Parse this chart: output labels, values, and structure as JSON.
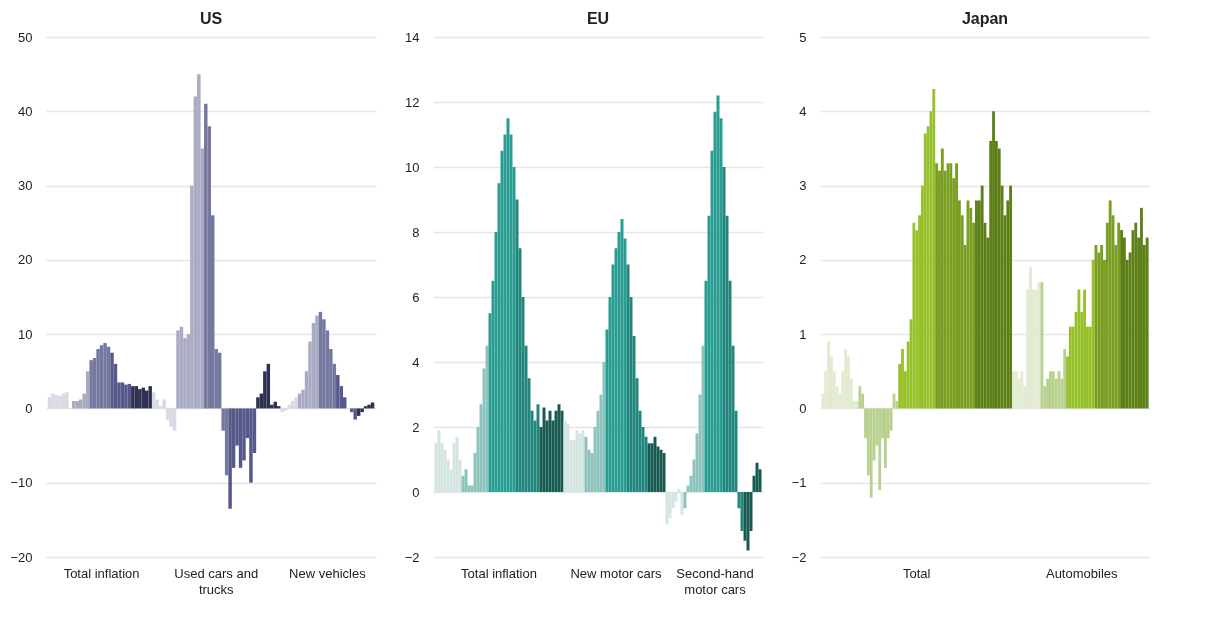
{
  "chart_data": [
    {
      "type": "bar",
      "title": "US",
      "ylim": [
        -20,
        50
      ],
      "yticks": [
        -20,
        -10,
        0,
        10,
        20,
        30,
        40,
        50
      ],
      "grid": "y",
      "categories": [
        null,
        null,
        null,
        null,
        null,
        null,
        null,
        null,
        null,
        null,
        null,
        null,
        null,
        null,
        null,
        "Total inflation",
        null,
        null,
        null,
        null,
        null,
        null,
        null,
        null,
        null,
        null,
        null,
        null,
        null,
        null,
        null,
        null,
        null,
        null,
        null,
        null,
        null,
        null,
        null,
        null,
        null,
        null,
        null,
        null,
        null,
        null,
        null,
        null,
        "Used cars and trucks",
        null,
        null,
        null,
        null,
        null,
        null,
        null,
        null,
        null,
        null,
        null,
        null,
        null,
        null,
        null,
        null,
        null,
        null,
        null,
        null,
        null,
        null,
        null,
        null,
        null,
        null,
        null,
        null,
        null,
        null,
        null,
        "New vehicles",
        null,
        null,
        null,
        null,
        null,
        null,
        null,
        null,
        null,
        null,
        null,
        null,
        null
      ],
      "values": [
        1.5,
        2,
        1.8,
        1.7,
        2,
        2.2,
        null,
        1,
        1,
        1.2,
        2,
        5,
        6.5,
        6.8,
        8,
        8.5,
        8.8,
        8.3,
        7.5,
        6,
        3.5,
        3.5,
        3.2,
        3.3,
        3,
        3,
        2.6,
        2.8,
        2.4,
        3,
        2.2,
        1.2,
        0.3,
        1.2,
        -1.5,
        -2.5,
        -3,
        10.5,
        11,
        9.5,
        10,
        30,
        42,
        45,
        35,
        41,
        38,
        26,
        8,
        7.5,
        -3,
        -9,
        -13.5,
        -8,
        -5,
        -8,
        -7,
        -4,
        -10,
        -6,
        1.5,
        2,
        5,
        6,
        0.5,
        0.9,
        0.3,
        -0.5,
        -0.3,
        0.5,
        1,
        1.5,
        2,
        2.5,
        5,
        9,
        11.5,
        12.5,
        13,
        12,
        10.5,
        8,
        6,
        4.5,
        3,
        1.5,
        0,
        -0.5,
        -1.5,
        -1,
        -0.5,
        0.3,
        0.5,
        0.8
      ],
      "colors": [
        "#d9dae3",
        "#d9dae3",
        "#d9dae3",
        "#d9dae3",
        "#d9dae3",
        "#d9dae3",
        "#a9abc3",
        "#a9abc3",
        "#a9abc3",
        "#a9abc3",
        "#a9abc3",
        "#a9abc3",
        "#7579a0",
        "#7579a0",
        "#7579a0",
        "#7579a0",
        "#7579a0",
        "#7579a0",
        "#565a8a",
        "#565a8a",
        "#565a8a",
        "#565a8a",
        "#565a8a",
        "#565a8a",
        "#2f3150",
        "#2f3150",
        "#2f3150",
        "#2f3150",
        "#2f3150",
        "#2f3150",
        "#d9dae3",
        "#d9dae3",
        "#d9dae3",
        "#d9dae3",
        "#d9dae3",
        "#d9dae3",
        "#d9dae3",
        "#a9abc3",
        "#a9abc3",
        "#a9abc3",
        "#a9abc3",
        "#a9abc3",
        "#a9abc3",
        "#a9abc3",
        "#a9abc3",
        "#7579a0",
        "#7579a0",
        "#7579a0",
        "#7579a0",
        "#7579a0",
        "#7579a0",
        "#7579a0",
        "#565a8a",
        "#565a8a",
        "#565a8a",
        "#565a8a",
        "#565a8a",
        "#565a8a",
        "#565a8a",
        "#565a8a",
        "#2f3150",
        "#2f3150",
        "#2f3150",
        "#2f3150",
        "#2f3150",
        "#2f3150",
        "#2f3150",
        "#d9dae3",
        "#d9dae3",
        "#d9dae3",
        "#d9dae3",
        "#d9dae3",
        "#a9abc3",
        "#a9abc3",
        "#a9abc3",
        "#a9abc3",
        "#a9abc3",
        "#a9abc3",
        "#7579a0",
        "#7579a0",
        "#7579a0",
        "#7579a0",
        "#7579a0",
        "#565a8a",
        "#565a8a",
        "#565a8a",
        "#565a8a",
        "#565a8a",
        "#565a8a",
        "#2f3150",
        "#2f3150",
        "#2f3150",
        "#2f3150",
        "#2f3150"
      ]
    },
    {
      "type": "bar",
      "title": "EU",
      "ylim": [
        -2,
        14
      ],
      "yticks": [
        -2,
        0,
        2,
        4,
        6,
        8,
        10,
        12,
        14
      ],
      "grid": "y",
      "categories": [
        null,
        null,
        null,
        null,
        null,
        null,
        null,
        null,
        null,
        null,
        null,
        null,
        null,
        null,
        null,
        null,
        null,
        null,
        null,
        null,
        null,
        "Total inflation",
        null,
        null,
        null,
        null,
        null,
        null,
        null,
        null,
        null,
        null,
        null,
        null,
        null,
        null,
        null,
        null,
        null,
        null,
        null,
        null,
        null,
        null,
        null,
        null,
        null,
        null,
        null,
        null,
        null,
        null,
        null,
        null,
        null,
        null,
        null,
        null,
        null,
        null,
        "New motor cars",
        null,
        null,
        null,
        null,
        null,
        null,
        null,
        null,
        null,
        null,
        null,
        null,
        null,
        null,
        null,
        null,
        null,
        null,
        null,
        null,
        null,
        null,
        null,
        null,
        null,
        null,
        null,
        null,
        null,
        null,
        null,
        null,
        "Second-hand motor cars",
        null,
        null,
        null,
        null,
        null,
        null,
        null,
        null,
        null,
        null,
        null,
        null,
        null,
        null,
        null
      ],
      "values": [
        1.5,
        1.9,
        1.5,
        1.3,
        1,
        0.7,
        1.5,
        1.7,
        1,
        0.5,
        0.7,
        0.2,
        0.2,
        1.2,
        2,
        2.7,
        3.8,
        4.5,
        5.5,
        6.5,
        8,
        9.5,
        10.5,
        11,
        11.5,
        11,
        10,
        9,
        7.5,
        6,
        4.5,
        3.5,
        2.5,
        2.2,
        2.7,
        2,
        2.6,
        2.2,
        2.5,
        2.2,
        2.5,
        2.7,
        2.5,
        2.2,
        2.1,
        1.6,
        1.6,
        1.9,
        1.8,
        1.9,
        1.7,
        1.3,
        1.2,
        2,
        2.5,
        3,
        4,
        5,
        6,
        7,
        7.5,
        8,
        8.4,
        7.8,
        7,
        6,
        4.8,
        3.5,
        2.5,
        2,
        1.7,
        1.5,
        1.5,
        1.7,
        1.4,
        1.3,
        1.2,
        -1,
        -0.8,
        -0.5,
        -0.3,
        0.1,
        -0.7,
        -0.5,
        0.2,
        0.5,
        1,
        1.8,
        3,
        4.5,
        6.5,
        8.5,
        10.5,
        11.7,
        12.2,
        11.5,
        10,
        8.5,
        6.5,
        4.5,
        2.5,
        -0.5,
        -1.2,
        -1.5,
        -1.8,
        -1.2,
        0.5,
        0.9,
        0.7
      ],
      "colors": [
        "#d3e4e1",
        "#d3e4e1",
        "#d3e4e1",
        "#d3e4e1",
        "#d3e4e1",
        "#d3e4e1",
        "#d3e4e1",
        "#d3e4e1",
        "#d3e4e1",
        "#8cc3bc",
        "#8cc3bc",
        "#8cc3bc",
        "#8cc3bc",
        "#8cc3bc",
        "#8cc3bc",
        "#8cc3bc",
        "#8cc3bc",
        "#8cc3bc",
        "#2a9d92",
        "#2a9d92",
        "#2a9d92",
        "#2a9d92",
        "#2a9d92",
        "#2a9d92",
        "#2a9d92",
        "#2a9d92",
        "#2a9d92",
        "#23867d",
        "#23867d",
        "#23867d",
        "#23867d",
        "#23867d",
        "#23867d",
        "#23867d",
        "#23867d",
        "#185a52",
        "#185a52",
        "#185a52",
        "#185a52",
        "#185a52",
        "#185a52",
        "#185a52",
        "#185a52",
        "#d3e4e1",
        "#d3e4e1",
        "#d3e4e1",
        "#d3e4e1",
        "#d3e4e1",
        "#d3e4e1",
        "#d3e4e1",
        "#8cc3bc",
        "#8cc3bc",
        "#8cc3bc",
        "#8cc3bc",
        "#8cc3bc",
        "#8cc3bc",
        "#8cc3bc",
        "#2a9d92",
        "#2a9d92",
        "#2a9d92",
        "#2a9d92",
        "#2a9d92",
        "#2a9d92",
        "#2a9d92",
        "#23867d",
        "#23867d",
        "#23867d",
        "#23867d",
        "#23867d",
        "#23867d",
        "#23867d",
        "#185a52",
        "#185a52",
        "#185a52",
        "#185a52",
        "#185a52",
        "#185a52",
        "#d3e4e1",
        "#d3e4e1",
        "#d3e4e1",
        "#d3e4e1",
        "#d3e4e1",
        "#d3e4e1",
        "#8cc3bc",
        "#8cc3bc",
        "#8cc3bc",
        "#8cc3bc",
        "#8cc3bc",
        "#8cc3bc",
        "#8cc3bc",
        "#2a9d92",
        "#2a9d92",
        "#2a9d92",
        "#2a9d92",
        "#2a9d92",
        "#2a9d92",
        "#23867d",
        "#23867d",
        "#23867d",
        "#23867d",
        "#23867d",
        "#23867d",
        "#23867d",
        "#185a52",
        "#185a52",
        "#185a52",
        "#185a52",
        "#185a52",
        "#185a52"
      ]
    },
    {
      "type": "bar",
      "title": "Japan",
      "ylim": [
        -2,
        5
      ],
      "yticks": [
        -2,
        -1,
        0,
        1,
        2,
        3,
        4,
        5
      ],
      "grid": "y",
      "categories": [
        null,
        null,
        null,
        null,
        null,
        null,
        null,
        null,
        null,
        null,
        null,
        null,
        null,
        null,
        null,
        null,
        null,
        null,
        null,
        null,
        null,
        null,
        null,
        null,
        null,
        null,
        null,
        null,
        null,
        null,
        null,
        null,
        null,
        "Total",
        null,
        null,
        null,
        null,
        null,
        null,
        null,
        null,
        null,
        null,
        null,
        null,
        null,
        null,
        null,
        null,
        null,
        null,
        null,
        null,
        null,
        null,
        null,
        null,
        null,
        null,
        null,
        null,
        null,
        null,
        null,
        null,
        null,
        null,
        null,
        null,
        null,
        null,
        null,
        null,
        null,
        null,
        null,
        null,
        null,
        null,
        null,
        null,
        null,
        null,
        null,
        null,
        null,
        null,
        null,
        null,
        null,
        "Automobiles",
        null,
        null,
        null,
        null,
        null,
        null,
        null,
        null,
        null,
        null,
        null,
        null,
        null,
        null,
        null,
        null,
        null,
        null,
        null,
        null,
        null,
        null,
        null
      ],
      "values": [
        0.2,
        0.5,
        0.9,
        0.7,
        0.5,
        0.3,
        0.2,
        0.5,
        0.8,
        0.7,
        0.4,
        0.1,
        0.1,
        0.3,
        0.2,
        -0.4,
        -0.9,
        -1.2,
        -0.7,
        -0.5,
        -1.1,
        -0.4,
        -0.8,
        -0.4,
        -0.3,
        0.2,
        0.1,
        0.6,
        0.8,
        0.5,
        0.9,
        1.2,
        2.5,
        2.4,
        2.6,
        3,
        3.7,
        3.8,
        4,
        4.3,
        3.3,
        3.2,
        3.5,
        3.2,
        3.3,
        3.3,
        3.1,
        3.3,
        2.8,
        2.6,
        2.2,
        2.8,
        2.7,
        2.5,
        2.8,
        2.8,
        3,
        2.5,
        2.3,
        3.6,
        4,
        3.6,
        3.5,
        3,
        2.6,
        2.8,
        3,
        0.5,
        0.5,
        0.4,
        0.5,
        0.3,
        1.6,
        1.9,
        1.6,
        1.6,
        1.7,
        1.7,
        0.3,
        0.4,
        0.5,
        0.5,
        0.4,
        0.5,
        0.4,
        0.8,
        0.7,
        1.1,
        1.1,
        1.3,
        1.6,
        1.3,
        1.6,
        1.1,
        1.1,
        2,
        2.2,
        2.1,
        2.2,
        2,
        2.5,
        2.8,
        2.6,
        2.2,
        2.5,
        2.4,
        2.3,
        2,
        2.1,
        2.4,
        2.5,
        2.3,
        2.7,
        2.2,
        2.3
      ],
      "colors": [
        "#e2ead2",
        "#e2ead2",
        "#e2ead2",
        "#e2ead2",
        "#e2ead2",
        "#e2ead2",
        "#e2ead2",
        "#e2ead2",
        "#e2ead2",
        "#e2ead2",
        "#e2ead2",
        "#e2ead2",
        "#e2ead2",
        "#b9d18f",
        "#b9d18f",
        "#b9d18f",
        "#b9d18f",
        "#b9d18f",
        "#b9d18f",
        "#b9d18f",
        "#b9d18f",
        "#b9d18f",
        "#b9d18f",
        "#b9d18f",
        "#b9d18f",
        "#b9d18f",
        "#b9d18f",
        "#96c12b",
        "#96c12b",
        "#96c12b",
        "#96c12b",
        "#96c12b",
        "#96c12b",
        "#96c12b",
        "#96c12b",
        "#96c12b",
        "#96c12b",
        "#96c12b",
        "#96c12b",
        "#96c12b",
        "#7a9e21",
        "#7a9e21",
        "#7a9e21",
        "#7a9e21",
        "#7a9e21",
        "#7a9e21",
        "#7a9e21",
        "#7a9e21",
        "#7a9e21",
        "#7a9e21",
        "#7a9e21",
        "#7a9e21",
        "#7a9e21",
        "#7a9e21",
        "#5d7f17",
        "#5d7f17",
        "#5d7f17",
        "#5d7f17",
        "#5d7f17",
        "#5d7f17",
        "#5d7f17",
        "#5d7f17",
        "#5d7f17",
        "#5d7f17",
        "#5d7f17",
        "#5d7f17",
        "#5d7f17",
        "#e2ead2",
        "#e2ead2",
        "#e2ead2",
        "#e2ead2",
        "#e2ead2",
        "#e2ead2",
        "#e2ead2",
        "#e2ead2",
        "#e2ead2",
        "#e2ead2",
        "#b9d18f",
        "#b9d18f",
        "#b9d18f",
        "#b9d18f",
        "#b9d18f",
        "#b9d18f",
        "#b9d18f",
        "#b9d18f",
        "#b9d18f",
        "#96c12b",
        "#96c12b",
        "#96c12b",
        "#96c12b",
        "#96c12b",
        "#96c12b",
        "#96c12b",
        "#96c12b",
        "#96c12b",
        "#96c12b",
        "#7a9e21",
        "#7a9e21",
        "#7a9e21",
        "#7a9e21",
        "#7a9e21",
        "#7a9e21",
        "#7a9e21",
        "#7a9e21",
        "#7a9e21",
        "#5d7f17",
        "#5d7f17",
        "#5d7f17",
        "#5d7f17",
        "#5d7f17",
        "#5d7f17",
        "#5d7f17",
        "#5d7f17",
        "#5d7f17",
        "#5d7f17"
      ]
    }
  ]
}
